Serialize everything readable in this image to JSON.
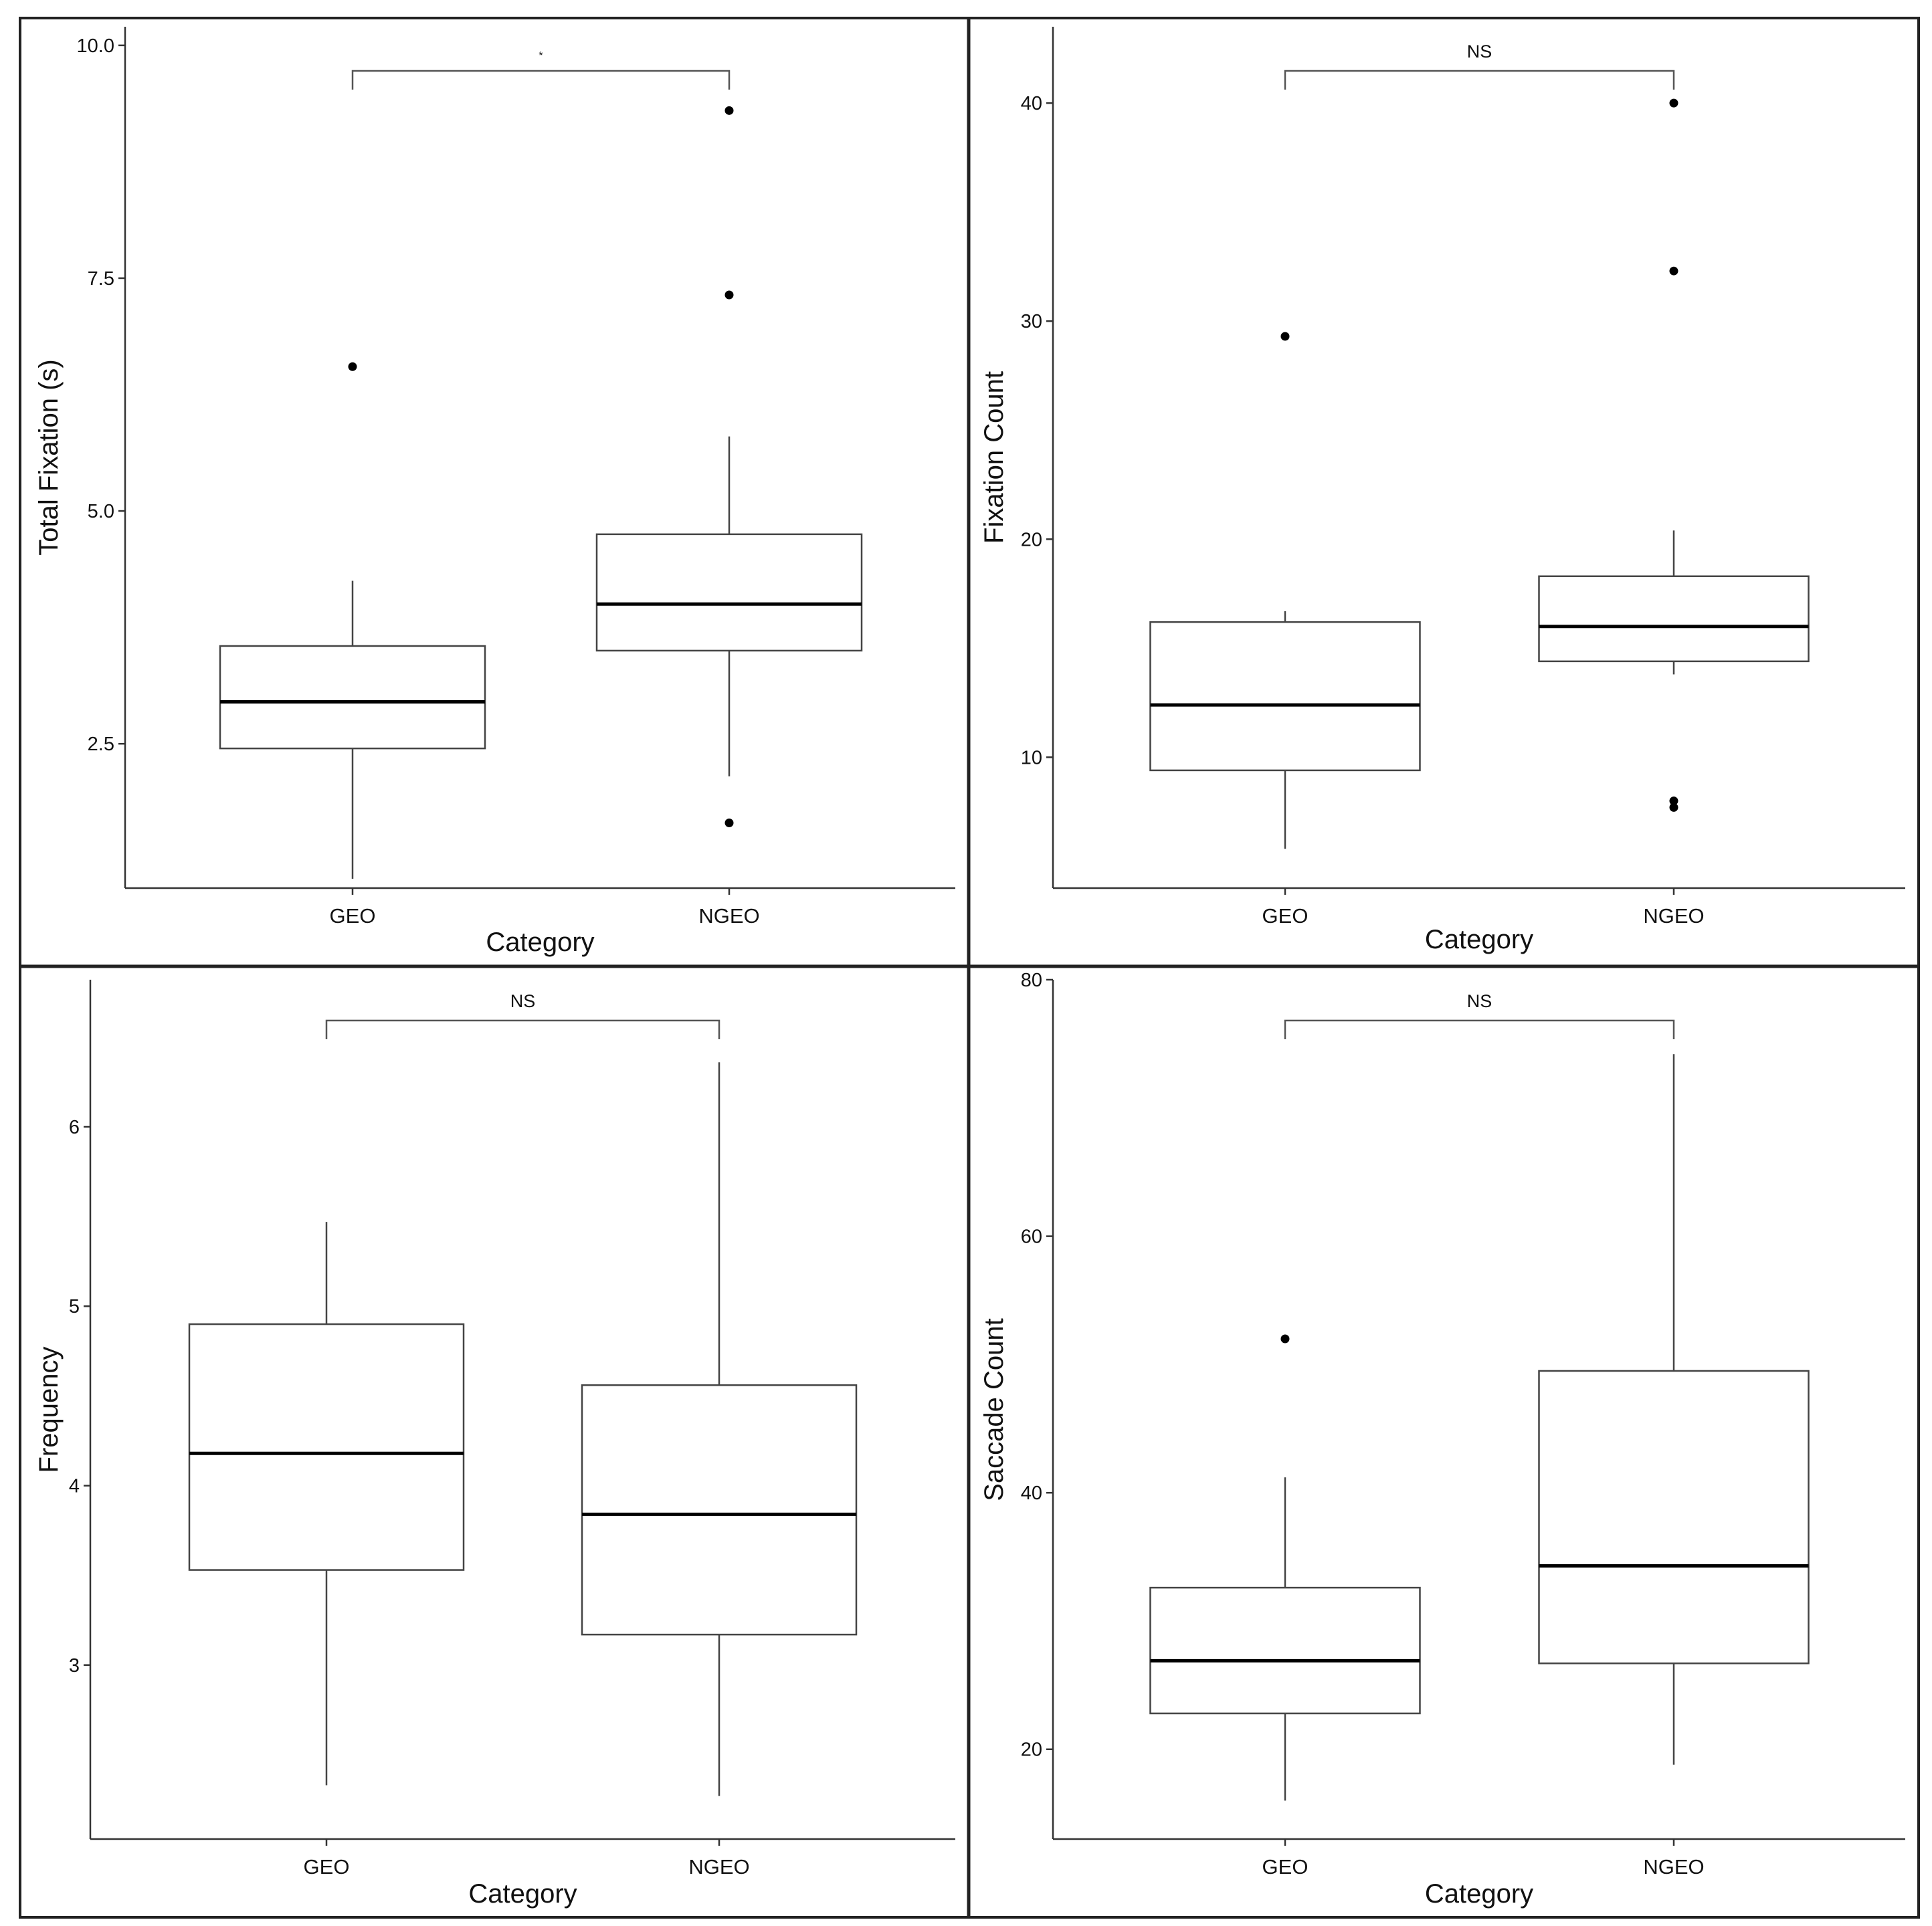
{
  "chart_data": [
    {
      "type": "box",
      "xlabel": "Category",
      "ylabel": "Total Fixation (s)",
      "categories": [
        "GEO",
        "NGEO"
      ],
      "ylim": [
        0.95,
        10.2
      ],
      "yticks": [
        2.5,
        5.0,
        7.5,
        10.0
      ],
      "ytick_labels": [
        "2.5",
        "5.0",
        "7.5",
        "10.0"
      ],
      "significance": "*",
      "boxes": [
        {
          "category": "GEO",
          "whisker_low": 1.05,
          "q1": 2.45,
          "median": 2.95,
          "q3": 3.55,
          "whisker_high": 4.25,
          "outliers": [
            6.55
          ]
        },
        {
          "category": "NGEO",
          "whisker_low": 2.15,
          "q1": 3.5,
          "median": 4.0,
          "q3": 4.75,
          "whisker_high": 5.8,
          "outliers": [
            9.3,
            7.32,
            1.65
          ]
        }
      ]
    },
    {
      "type": "box",
      "xlabel": "Category",
      "ylabel": "Fixation Count",
      "categories": [
        "GEO",
        "NGEO"
      ],
      "ylim": [
        4,
        43.5
      ],
      "yticks": [
        10,
        20,
        30,
        40
      ],
      "ytick_labels": [
        "10",
        "20",
        "30",
        "40"
      ],
      "significance": "NS",
      "boxes": [
        {
          "category": "GEO",
          "whisker_low": 5.8,
          "q1": 9.4,
          "median": 12.4,
          "q3": 16.2,
          "whisker_high": 16.7,
          "outliers": [
            29.3
          ]
        },
        {
          "category": "NGEO",
          "whisker_low": 13.8,
          "q1": 14.4,
          "median": 16.0,
          "q3": 18.3,
          "whisker_high": 20.4,
          "outliers": [
            40.0,
            32.3,
            8.0,
            7.7
          ]
        }
      ]
    },
    {
      "type": "box",
      "xlabel": "Category",
      "ylabel": "Frequency",
      "categories": [
        "GEO",
        "NGEO"
      ],
      "ylim": [
        2.03,
        6.82
      ],
      "yticks": [
        3,
        4,
        5,
        6
      ],
      "ytick_labels": [
        "3",
        "4",
        "5",
        "6"
      ],
      "significance": "NS",
      "boxes": [
        {
          "category": "GEO",
          "whisker_low": 2.33,
          "q1": 3.53,
          "median": 4.18,
          "q3": 4.9,
          "whisker_high": 5.47,
          "outliers": []
        },
        {
          "category": "NGEO",
          "whisker_low": 2.27,
          "q1": 3.17,
          "median": 3.84,
          "q3": 4.56,
          "whisker_high": 6.36,
          "outliers": []
        }
      ]
    },
    {
      "type": "box",
      "xlabel": "Category",
      "ylabel": "Saccade Count",
      "categories": [
        "GEO",
        "NGEO"
      ],
      "ylim": [
        13,
        80
      ],
      "yticks": [
        20,
        40,
        60,
        80
      ],
      "ytick_labels": [
        "20",
        "40",
        "60",
        "80"
      ],
      "significance": "NS",
      "boxes": [
        {
          "category": "GEO",
          "whisker_low": 16.0,
          "q1": 22.8,
          "median": 26.9,
          "q3": 32.6,
          "whisker_high": 41.2,
          "outliers": [
            52.0
          ]
        },
        {
          "category": "NGEO",
          "whisker_low": 18.8,
          "q1": 26.7,
          "median": 34.3,
          "q3": 49.5,
          "whisker_high": 74.2,
          "outliers": []
        }
      ]
    }
  ]
}
